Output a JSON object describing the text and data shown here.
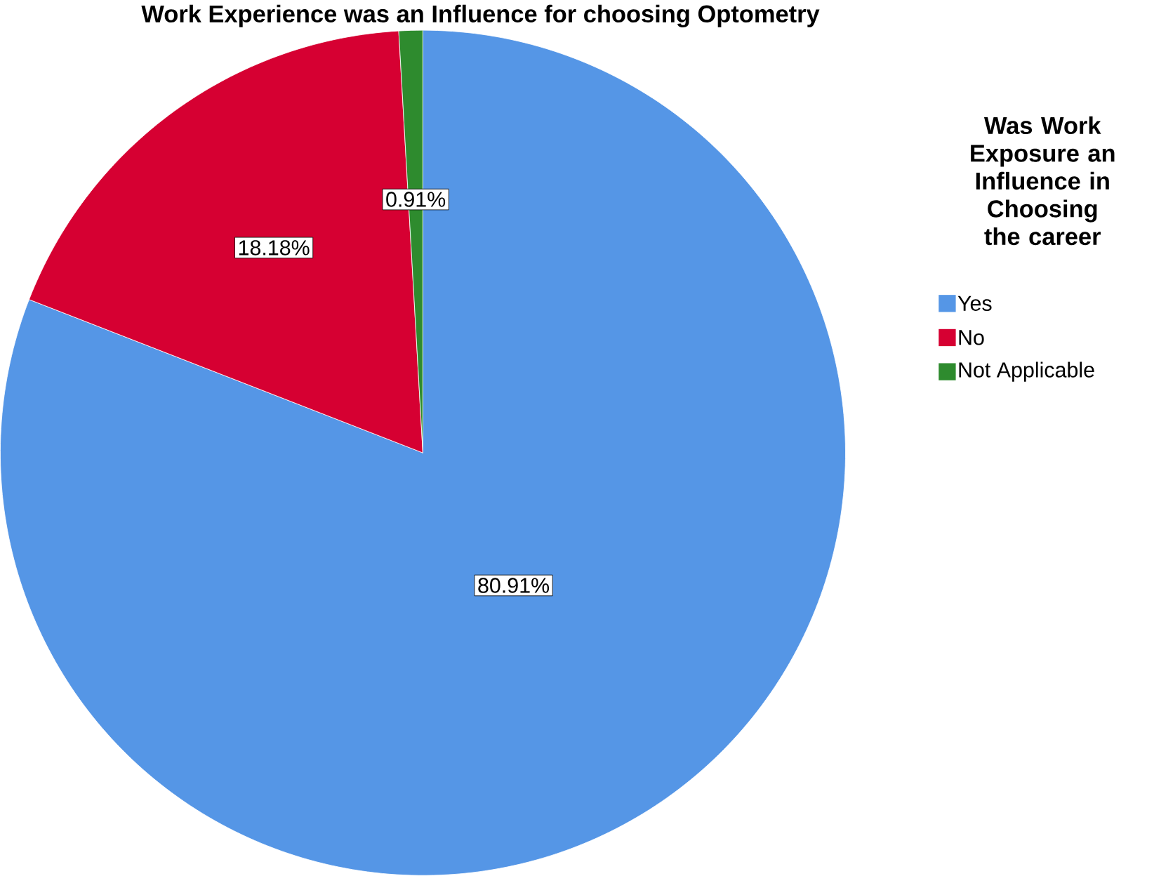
{
  "chart_data": {
    "type": "pie",
    "title": "Work Experience was an Influence for choosing Optometry",
    "legend_title": "Was Work Exposure an Influence in Choosing the career",
    "categories": [
      "Yes",
      "No",
      "Not Applicable"
    ],
    "values": [
      80.91,
      18.18,
      0.91
    ],
    "colors": [
      "#5596e6",
      "#d60032",
      "#2e8b2e"
    ],
    "value_labels": [
      "80.91%",
      "18.18%",
      "0.91%"
    ],
    "legend": "right"
  }
}
